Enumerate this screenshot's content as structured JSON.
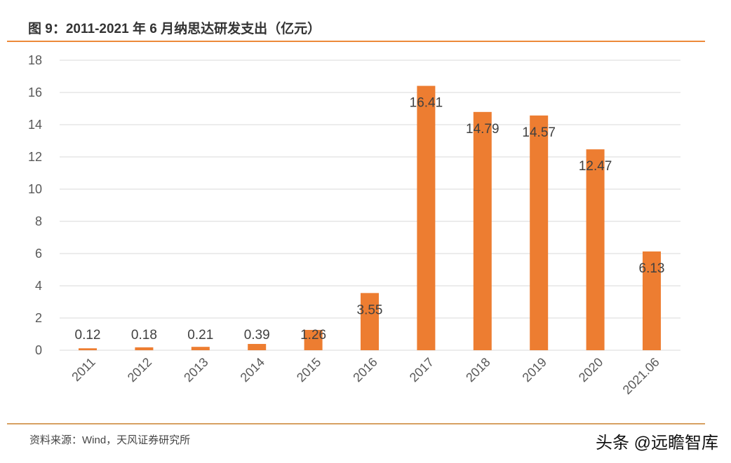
{
  "title": "图 9：2011-2021 年 6 月纳思达研发支出（亿元）",
  "source": "资料来源：Wind，天风证券研究所",
  "watermark": "头条 @远瞻智库",
  "chart_data": {
    "type": "bar",
    "categories": [
      "2011",
      "2012",
      "2013",
      "2014",
      "2015",
      "2016",
      "2017",
      "2018",
      "2019",
      "2020",
      "2021.06"
    ],
    "values": [
      0.12,
      0.18,
      0.21,
      0.39,
      1.26,
      3.55,
      16.41,
      14.79,
      14.57,
      12.47,
      6.13
    ],
    "data_labels": [
      "0.12",
      "0.18",
      "0.21",
      "0.39",
      "1.26",
      "3.55",
      "16.41",
      "14.79",
      "14.57",
      "12.47",
      "6.13"
    ],
    "ylim": [
      0,
      18
    ],
    "yticks": [
      "0",
      "2",
      "4",
      "6",
      "8",
      "10",
      "12",
      "14",
      "16",
      "18"
    ],
    "grid": true,
    "bar_color": "#ed7d31"
  }
}
